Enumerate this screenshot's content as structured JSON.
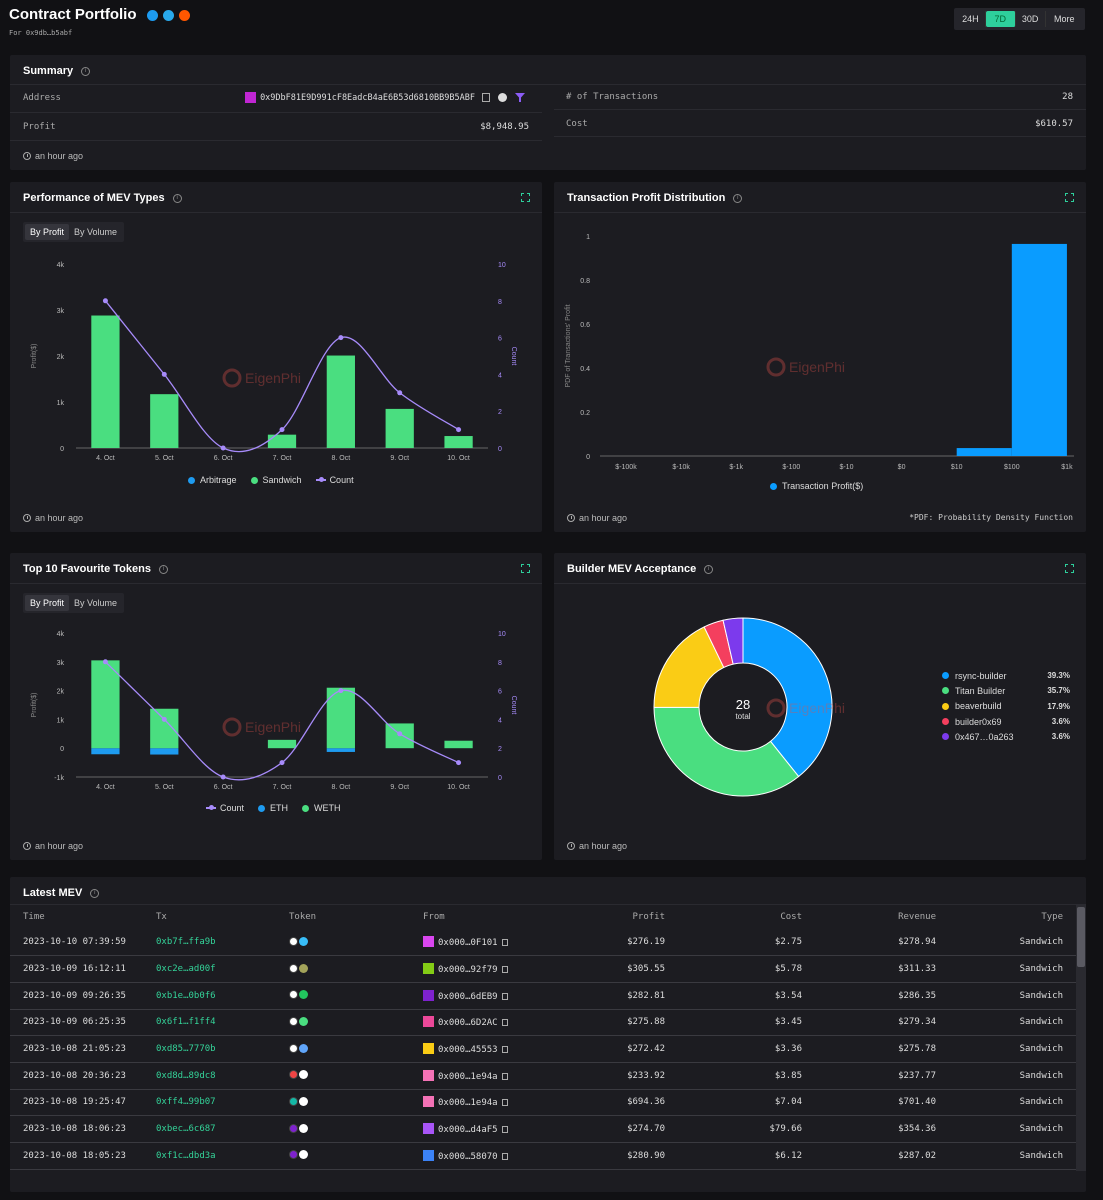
{
  "header": {
    "title": "Contract Portfolio",
    "subtitle": "For 0x9db…b5abf",
    "time_ranges": [
      "24H",
      "7D",
      "30D",
      "More"
    ],
    "active_range": "7D"
  },
  "summary": {
    "title": "Summary",
    "address_label": "Address",
    "address": "0x9DbF81E9D991cF8EadcB4aE6B53d6810BB9B5ABF",
    "profit_label": "Profit",
    "profit": "$8,948.95",
    "tx_count_label": "# of Transactions",
    "tx_count": "28",
    "cost_label": "Cost",
    "cost": "$610.57",
    "updated": "an hour ago"
  },
  "mev_types": {
    "title": "Performance of MEV Types",
    "toggle": [
      "By Profit",
      "By Volume"
    ],
    "updated": "an hour ago",
    "watermark": "EigenPhi",
    "chart_data": {
      "type": "bar",
      "categories": [
        "4. Oct",
        "5. Oct",
        "6. Oct",
        "7. Oct",
        "8. Oct",
        "9. Oct",
        "10. Oct"
      ],
      "ylabel": "Profit($)",
      "y2label": "Count",
      "ylim": [
        0,
        4000
      ],
      "y2lim": [
        0,
        10
      ],
      "y_ticks": [
        "0",
        "1k",
        "2k",
        "3k",
        "4k"
      ],
      "y2_ticks": [
        "0",
        "2",
        "4",
        "6",
        "8",
        "10"
      ],
      "series": [
        {
          "name": "Arbitrage",
          "color": "#1e9bf0",
          "values": [
            0,
            0,
            0,
            0,
            0,
            0,
            0
          ]
        },
        {
          "name": "Sandwich",
          "color": "#4ade80",
          "values": [
            2880,
            1170,
            0,
            290,
            2010,
            850,
            260
          ]
        },
        {
          "name": "Count",
          "color": "#a78bfa",
          "axis": "right",
          "values": [
            8,
            4,
            0,
            1,
            6,
            3,
            1
          ]
        }
      ],
      "legend": "bottom"
    }
  },
  "profit_dist": {
    "title": "Transaction Profit Distribution",
    "updated": "an hour ago",
    "note": "*PDF: Probability Density Function",
    "watermark": "EigenPhi",
    "chart_data": {
      "type": "bar",
      "categories": [
        "$-100k",
        "$-10k",
        "$-1k",
        "$-100",
        "$-10",
        "$0",
        "$10",
        "$100",
        "$1k"
      ],
      "ylabel": "PDF of Transactions' Profit",
      "ylim": [
        0,
        1
      ],
      "y_ticks": [
        "0",
        "0.2",
        "0.4",
        "0.6",
        "0.8",
        "1"
      ],
      "series": [
        {
          "name": "Transaction Profit($)",
          "color": "#0a9cff",
          "bins": [
            {
              "from": "$10",
              "to": "$100",
              "value": 0.036
            },
            {
              "from": "$100",
              "to": "$1k",
              "value": 0.964
            }
          ]
        }
      ],
      "legend": "bottom"
    }
  },
  "tokens": {
    "title": "Top 10 Favourite Tokens",
    "toggle": [
      "By Profit",
      "By Volume"
    ],
    "updated": "an hour ago",
    "watermark": "EigenPhi",
    "chart_data": {
      "type": "bar",
      "categories": [
        "4. Oct",
        "5. Oct",
        "6. Oct",
        "7. Oct",
        "8. Oct",
        "9. Oct",
        "10. Oct"
      ],
      "ylabel": "Profit($)",
      "y2label": "Count",
      "ylim": [
        -1000,
        4000
      ],
      "y2lim": [
        0,
        10
      ],
      "y_ticks": [
        "-1k",
        "0",
        "1k",
        "2k",
        "3k",
        "4k"
      ],
      "y2_ticks": [
        "0",
        "2",
        "4",
        "6",
        "8",
        "10"
      ],
      "series": [
        {
          "name": "Count",
          "color": "#a78bfa",
          "axis": "right",
          "values": [
            8,
            4,
            0,
            1,
            6,
            3,
            1
          ]
        },
        {
          "name": "ETH",
          "color": "#1e9bf0",
          "values": [
            -210,
            -220,
            0,
            0,
            -130,
            0,
            0
          ]
        },
        {
          "name": "WETH",
          "color": "#4ade80",
          "values": [
            3050,
            1370,
            0,
            290,
            2100,
            860,
            260
          ]
        }
      ],
      "legend": "bottom"
    }
  },
  "builders": {
    "title": "Builder MEV Acceptance",
    "updated": "an hour ago",
    "watermark": "EigenPhi",
    "center_value": "28",
    "center_label": "total",
    "chart_data": {
      "type": "pie",
      "slices": [
        {
          "name": "rsync-builder",
          "value": 39.3,
          "label": "39.3%",
          "color": "#0a9cff"
        },
        {
          "name": "Titan Builder",
          "value": 35.7,
          "label": "35.7%",
          "color": "#4ade80"
        },
        {
          "name": "beaverbuild",
          "value": 17.9,
          "label": "17.9%",
          "color": "#facc15"
        },
        {
          "name": "builder0x69",
          "value": 3.6,
          "label": "3.6%",
          "color": "#f43f5e"
        },
        {
          "name": "0x467…0a263",
          "value": 3.6,
          "label": "3.6%",
          "color": "#7c3aed"
        }
      ],
      "legend": "right"
    }
  },
  "latest": {
    "title": "Latest MEV",
    "columns": [
      "Time",
      "Tx",
      "Token",
      "From",
      "Profit",
      "Cost",
      "Revenue",
      "Type"
    ],
    "rows": [
      {
        "time": "2023-10-10 07:39:59",
        "tx": "0xb7f…ffa9b",
        "from": "0x000…0F101",
        "profit": "$276.19",
        "cost": "$2.75",
        "revenue": "$278.94",
        "type": "Sandwich",
        "tok": [
          "#ffffff",
          "#38bdf8"
        ],
        "av": "#d946ef"
      },
      {
        "time": "2023-10-09 16:12:11",
        "tx": "0xc2e…ad00f",
        "from": "0x000…92f79",
        "profit": "$305.55",
        "cost": "$5.78",
        "revenue": "$311.33",
        "type": "Sandwich",
        "tok": [
          "#ffffff",
          "#a3a35a"
        ],
        "av": "#84cc16"
      },
      {
        "time": "2023-10-09 09:26:35",
        "tx": "0xb1e…0b0f6",
        "from": "0x000…6dEB9",
        "profit": "$282.81",
        "cost": "$3.54",
        "revenue": "$286.35",
        "type": "Sandwich",
        "tok": [
          "#ffffff",
          "#22c55e"
        ],
        "av": "#7e22ce"
      },
      {
        "time": "2023-10-09 06:25:35",
        "tx": "0x6f1…f1ff4",
        "from": "0x000…6D2AC",
        "profit": "$275.88",
        "cost": "$3.45",
        "revenue": "$279.34",
        "type": "Sandwich",
        "tok": [
          "#ffffff",
          "#4ade80"
        ],
        "av": "#ec4899"
      },
      {
        "time": "2023-10-08 21:05:23",
        "tx": "0xd85…7770b",
        "from": "0x000…45553",
        "profit": "$272.42",
        "cost": "$3.36",
        "revenue": "$275.78",
        "type": "Sandwich",
        "tok": [
          "#ffffff",
          "#60a5fa"
        ],
        "av": "#facc15"
      },
      {
        "time": "2023-10-08 20:36:23",
        "tx": "0xd8d…89dc8",
        "from": "0x000…1e94a",
        "profit": "$233.92",
        "cost": "$3.85",
        "revenue": "$237.77",
        "type": "Sandwich",
        "tok": [
          "#ef4444",
          "#ffffff"
        ],
        "av": "#f472b6"
      },
      {
        "time": "2023-10-08 19:25:47",
        "tx": "0xff4…99b07",
        "from": "0x000…1e94a",
        "profit": "$694.36",
        "cost": "$7.04",
        "revenue": "$701.40",
        "type": "Sandwich",
        "tok": [
          "#14b8a6",
          "#ffffff"
        ],
        "av": "#f472b6"
      },
      {
        "time": "2023-10-08 18:06:23",
        "tx": "0xbec…6c687",
        "from": "0x000…d4aF5",
        "profit": "$274.70",
        "cost": "$79.66",
        "revenue": "$354.36",
        "type": "Sandwich",
        "tok": [
          "#7e22ce",
          "#ffffff"
        ],
        "av": "#a855f7"
      },
      {
        "time": "2023-10-08 18:05:23",
        "tx": "0xf1c…dbd3a",
        "from": "0x000…58070",
        "profit": "$280.90",
        "cost": "$6.12",
        "revenue": "$287.02",
        "type": "Sandwich",
        "tok": [
          "#7e22ce",
          "#ffffff"
        ],
        "av": "#3b82f6"
      }
    ]
  }
}
